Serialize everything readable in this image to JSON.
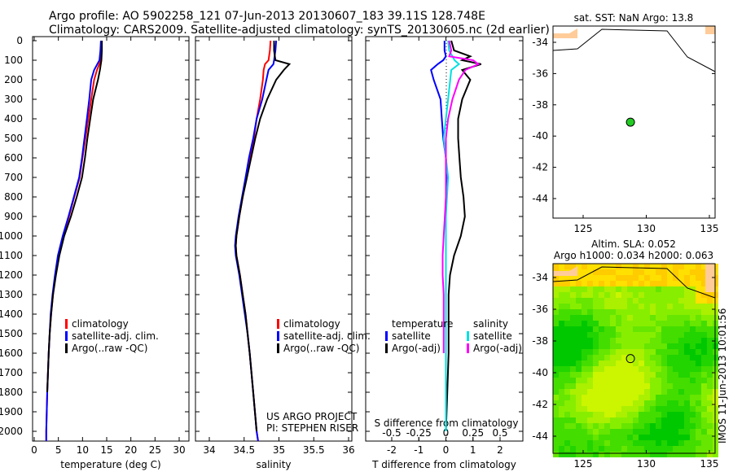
{
  "title": {
    "line1": "Argo profile: AO 5902258_121 07-Jun-2013 20130607_183 39.11S 128.748E",
    "line2": "Climatology: CARS2009. Satellite-adjusted climatology: synTS_20130605.nc (2d earlier)"
  },
  "credit": "IMOS 11-Jun-2013 10:01:56",
  "chart_data": [
    {
      "type": "line",
      "name": "temperature",
      "xlabel": "temperature (deg C)",
      "ylabel": "depth",
      "xlim": [
        -1,
        31
      ],
      "ylim": [
        2050,
        0
      ],
      "xticks": [
        0,
        5,
        10,
        15,
        20,
        25,
        30
      ],
      "yticks": [
        0,
        100,
        200,
        300,
        400,
        500,
        600,
        700,
        800,
        900,
        1000,
        1100,
        1200,
        1300,
        1400,
        1500,
        1600,
        1700,
        1800,
        1900,
        2000
      ],
      "legend": [
        "climatology",
        "satellite-adj. clim.",
        "Argo(..raw -QC)"
      ],
      "depth": [
        0,
        50,
        100,
        150,
        200,
        300,
        400,
        500,
        600,
        700,
        800,
        900,
        1000,
        1100,
        1200,
        1300,
        1400,
        1500,
        1600,
        1800,
        2000,
        2050
      ],
      "series": [
        {
          "name": "climatology",
          "color": "#ff0000",
          "values": [
            14.0,
            13.9,
            13.8,
            13.0,
            12.4,
            11.8,
            11.2,
            10.6,
            10.0,
            9.4,
            8.3,
            7.2,
            6.0,
            5.0,
            4.4,
            3.9,
            3.5,
            3.2,
            3.0,
            2.7,
            2.5,
            2.5
          ]
        },
        {
          "name": "satellite-adj. clim.",
          "color": "#0000ff",
          "values": [
            13.8,
            13.7,
            13.5,
            12.4,
            11.8,
            11.4,
            10.9,
            10.4,
            9.9,
            9.3,
            8.2,
            7.1,
            5.9,
            4.9,
            4.3,
            3.8,
            3.4,
            3.2,
            3.0,
            2.7,
            2.5,
            2.5
          ]
        },
        {
          "name": "Argo(..raw -QC)",
          "color": "#000000",
          "values": [
            14.0,
            14.0,
            13.9,
            13.6,
            13.2,
            12.2,
            11.6,
            11.0,
            10.5,
            9.9,
            8.8,
            7.6,
            6.2,
            5.2,
            4.5,
            3.9,
            3.5,
            3.2,
            3.0,
            2.7,
            null,
            null
          ]
        }
      ]
    },
    {
      "type": "line",
      "name": "salinity",
      "xlabel": "salinity",
      "ylabel": "depth",
      "xlim": [
        33.8,
        36.1
      ],
      "ylim": [
        2050,
        0
      ],
      "xticks": [
        34,
        34.5,
        35,
        35.5,
        36
      ],
      "legend": [
        "climatology",
        "satellite-adj. clim.",
        "Argo(..raw -QC)"
      ],
      "annotation": [
        "US ARGO PROJECT",
        "PI: STEPHEN RISER"
      ],
      "depth": [
        0,
        50,
        100,
        120,
        150,
        200,
        300,
        400,
        500,
        600,
        700,
        800,
        900,
        1000,
        1050,
        1100,
        1200,
        1300,
        1400,
        1500,
        1600,
        1800,
        2000,
        2050
      ],
      "series": [
        {
          "name": "climatology",
          "color": "#ff0000",
          "values": [
            34.88,
            34.87,
            34.85,
            34.8,
            34.78,
            34.77,
            34.73,
            34.68,
            34.64,
            34.58,
            34.53,
            34.48,
            34.43,
            34.39,
            34.38,
            34.39,
            34.44,
            34.48,
            34.52,
            34.55,
            34.58,
            34.63,
            34.68,
            34.7
          ]
        },
        {
          "name": "satellite-adj. clim.",
          "color": "#0000ff",
          "values": [
            34.96,
            34.95,
            34.93,
            34.92,
            34.85,
            34.82,
            34.76,
            34.68,
            34.63,
            34.57,
            34.52,
            34.47,
            34.42,
            34.38,
            34.37,
            34.38,
            34.43,
            34.47,
            34.51,
            34.55,
            34.58,
            34.63,
            34.68,
            34.7
          ]
        },
        {
          "name": "Argo(..raw -QC)",
          "color": "#000000",
          "values": [
            34.93,
            34.93,
            34.95,
            35.15,
            35.07,
            34.96,
            34.83,
            34.73,
            34.66,
            34.6,
            34.54,
            34.48,
            34.43,
            34.39,
            34.38,
            34.39,
            34.44,
            34.48,
            34.52,
            34.55,
            34.58,
            34.63,
            34.68,
            null
          ]
        }
      ]
    },
    {
      "type": "line",
      "name": "difference",
      "xlabel": "T difference from climatology",
      "x2label": "S difference from climatology",
      "xlim": [
        -3,
        3
      ],
      "x2lim": [
        -0.75,
        0.75
      ],
      "ylim": [
        2050,
        0
      ],
      "xticks": [
        -2,
        -1,
        0,
        1,
        2
      ],
      "x2ticks": [
        -0.5,
        -0.25,
        0,
        0.25,
        0.5
      ],
      "legend_headers": [
        "temperature",
        "salinity"
      ],
      "legend": [
        "satellite",
        "Argo(-adj)",
        "satellite",
        "Argo(-adj)"
      ],
      "depth": [
        0,
        50,
        80,
        100,
        120,
        150,
        200,
        300,
        400,
        500,
        600,
        700,
        800,
        900,
        1000,
        1100,
        1200,
        1300,
        1400,
        1600,
        1800,
        2000
      ],
      "series": [
        {
          "name": "T satellite",
          "axis": "T",
          "color": "#0000ff",
          "values": [
            -0.05,
            -0.05,
            0.0,
            -0.1,
            -0.3,
            -0.55,
            -0.45,
            -0.2,
            -0.15,
            -0.1,
            0.0,
            0.05,
            0.0,
            0.0,
            0.0,
            0.0,
            0.0,
            0.0,
            0.0,
            0.0,
            0.0,
            0.0
          ]
        },
        {
          "name": "T Argo(-adj)",
          "axis": "T",
          "color": "#000000",
          "values": [
            0.2,
            0.3,
            0.9,
            0.6,
            1.3,
            0.6,
            0.9,
            0.6,
            0.45,
            0.45,
            0.5,
            0.55,
            0.65,
            0.7,
            0.55,
            0.3,
            0.15,
            0.1,
            0.1,
            0.1,
            0.05,
            0.0
          ]
        },
        {
          "name": "S satellite",
          "axis": "S",
          "color": "#00e0e0",
          "values": [
            0.02,
            0.03,
            0.06,
            0.08,
            0.12,
            0.05,
            0.04,
            0.02,
            0.0,
            -0.02,
            0.0,
            0.02,
            0.01,
            0.0,
            0.0,
            0.0,
            0.0,
            0.0,
            0.0,
            0.0,
            0.0,
            0.0
          ]
        },
        {
          "name": "S Argo(-adj)",
          "axis": "S",
          "color": "#ff00ff",
          "values": [
            0.03,
            0.05,
            0.03,
            0.25,
            0.3,
            0.18,
            0.12,
            0.06,
            0.02,
            0.0,
            0.0,
            0.0,
            0.0,
            -0.01,
            -0.02,
            -0.03,
            -0.03,
            -0.02,
            -0.02,
            -0.02,
            null,
            null
          ]
        }
      ]
    },
    {
      "type": "map",
      "name": "sst-map",
      "title": "sat. SST: NaN Argo: 13.8",
      "xlim": [
        122.5,
        135.3
      ],
      "ylim": [
        -45.2,
        -32.7
      ],
      "xticks": [
        125,
        130,
        135
      ],
      "yticks": [
        -34,
        -36,
        -38,
        -40,
        -42,
        -44
      ],
      "point": {
        "lon": 128.748,
        "lat": -39.11
      }
    },
    {
      "type": "map",
      "name": "sla-map",
      "title": [
        "Altim. SLA: 0.052",
        "Argo h1000: 0.034 h2000: 0.063"
      ],
      "xlim": [
        122.5,
        135.3
      ],
      "ylim": [
        -45.2,
        -33.1
      ],
      "xticks": [
        125,
        130,
        135
      ],
      "yticks": [
        -34,
        -36,
        -38,
        -40,
        -42,
        -44
      ],
      "point": {
        "lon": 128.748,
        "lat": -39.11
      }
    }
  ]
}
